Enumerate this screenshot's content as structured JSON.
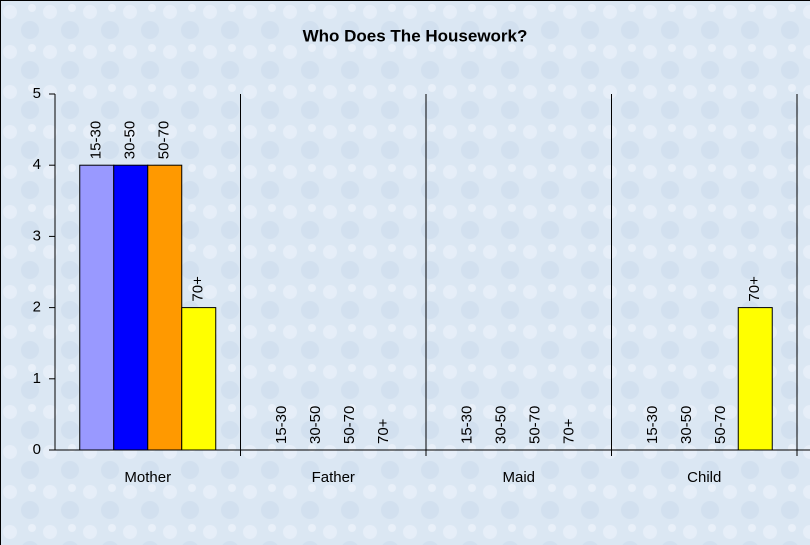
{
  "chart_data": {
    "type": "bar",
    "title": "Who Does The Housework?",
    "categories": [
      "Mother",
      "Father",
      "Maid",
      "Child"
    ],
    "series": [
      {
        "name": "15-30",
        "color": "#9999ff",
        "values": [
          4,
          0,
          0,
          0
        ]
      },
      {
        "name": "30-50",
        "color": "#0000ff",
        "values": [
          4,
          0,
          0,
          0
        ]
      },
      {
        "name": "50-70",
        "color": "#ff9900",
        "values": [
          4,
          0,
          0,
          0
        ]
      },
      {
        "name": "70+",
        "color": "#ffff00",
        "values": [
          2,
          0,
          0,
          2
        ]
      }
    ],
    "ylim": [
      0,
      5
    ],
    "yticks": [
      0,
      1,
      2,
      3,
      4,
      5
    ],
    "grid_x": true
  }
}
